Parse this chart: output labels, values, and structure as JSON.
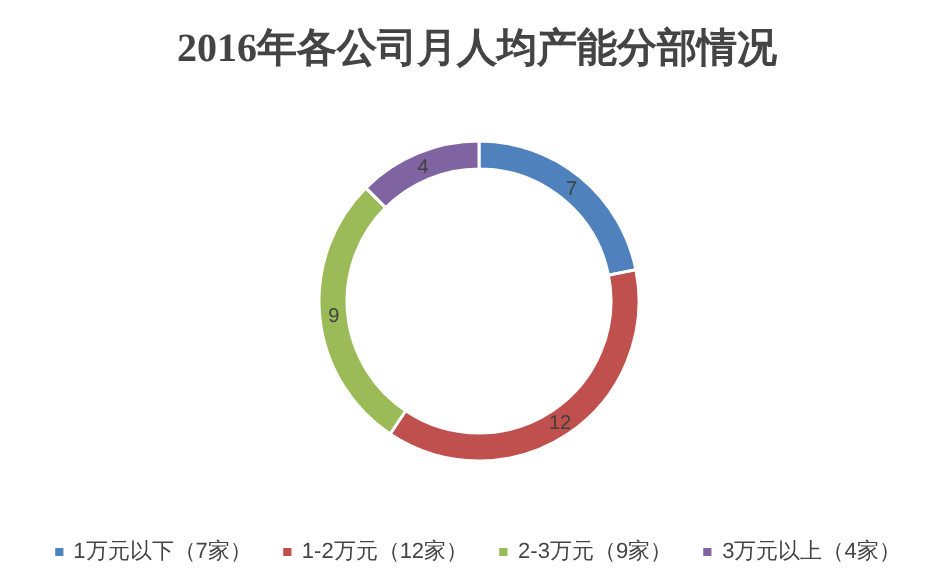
{
  "chart_data": {
    "type": "donut",
    "title": "2016年各公司月人均产能分部情况",
    "categories": [
      "1万元以下（7家）",
      "1-2万元（12家）",
      "2-3万元（9家）",
      "3万元以上（4家）"
    ],
    "values": [
      7,
      12,
      9,
      4
    ],
    "colors": [
      "#4f81bd",
      "#c0504d",
      "#9bbb59",
      "#8064a2"
    ],
    "data_labels": true,
    "legend": "bottom"
  }
}
